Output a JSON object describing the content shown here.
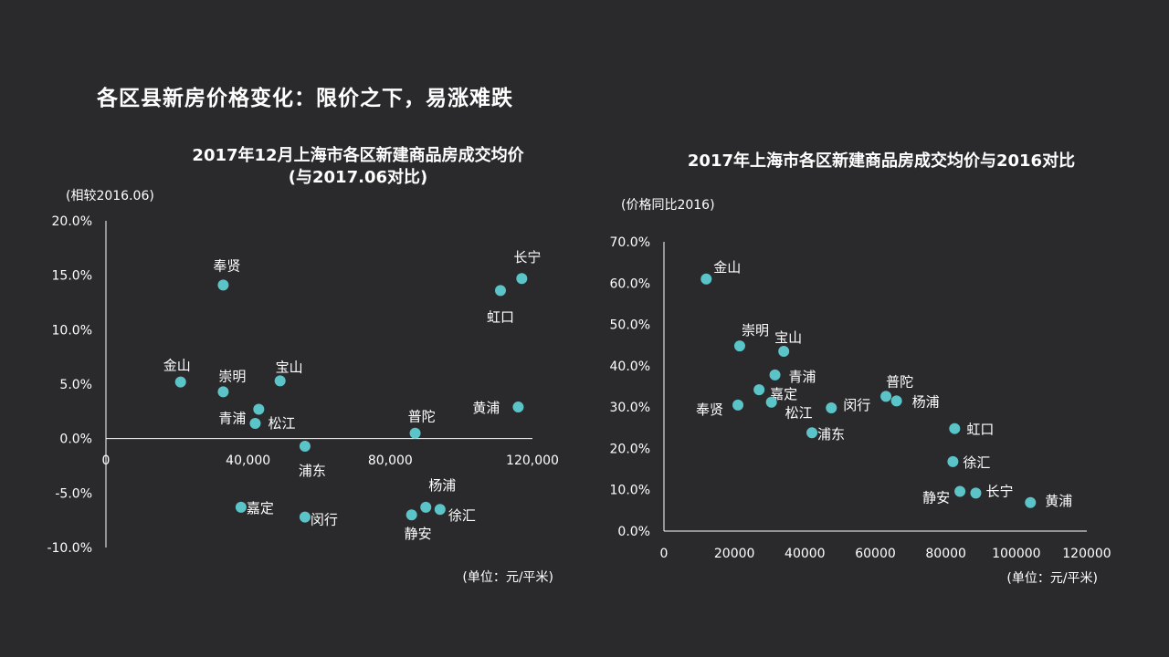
{
  "page": {
    "title": "各区县新房价格变化：限价之下，易涨难跌"
  },
  "colors": {
    "background": "#2a2a2c",
    "point": "#5bc4c8",
    "text": "#ffffff"
  },
  "chart_data": [
    {
      "type": "scatter",
      "title_lines": [
        "2017年12月上海市各区新建商品房成交均价",
        "(与2017.06对比)"
      ],
      "ylabel": "(相较2016.06)",
      "unit_note": "(单位：元/平米)",
      "xlim": [
        0,
        120000
      ],
      "ylim": [
        -10,
        20
      ],
      "xticks": [
        0,
        40000,
        80000,
        120000
      ],
      "xtick_labels": [
        "0",
        "40,000",
        "80,000",
        "120,000"
      ],
      "yticks": [
        20,
        15,
        10,
        5,
        0,
        -5,
        -10
      ],
      "ytick_labels": [
        "20.0%",
        "15.0%",
        "10.0%",
        "5.0%",
        "0.0%",
        "-5.0%",
        "-10.0%"
      ],
      "points": [
        {
          "name": "奉贤",
          "x": 33000,
          "y": 14.1
        },
        {
          "name": "长宁",
          "x": 117000,
          "y": 14.7
        },
        {
          "name": "虹口",
          "x": 111000,
          "y": 13.6
        },
        {
          "name": "金山",
          "x": 21000,
          "y": 5.2
        },
        {
          "name": "崇明",
          "x": 33000,
          "y": 4.3
        },
        {
          "name": "宝山",
          "x": 49000,
          "y": 5.3
        },
        {
          "name": "青浦",
          "x": 43000,
          "y": 2.7
        },
        {
          "name": "松江",
          "x": 42000,
          "y": 1.4
        },
        {
          "name": "黄浦",
          "x": 116000,
          "y": 2.9
        },
        {
          "name": "普陀",
          "x": 87000,
          "y": 0.5
        },
        {
          "name": "浦东",
          "x": 56000,
          "y": -0.7
        },
        {
          "name": "嘉定",
          "x": 38000,
          "y": -6.3
        },
        {
          "name": "闵行",
          "x": 56000,
          "y": -7.2
        },
        {
          "name": "杨浦",
          "x": 90000,
          "y": -6.3
        },
        {
          "name": "徐汇",
          "x": 94000,
          "y": -6.5
        },
        {
          "name": "静安",
          "x": 86000,
          "y": -7.0
        }
      ]
    },
    {
      "type": "scatter",
      "title_lines": [
        "2017年上海市各区新建商品房成交均价与2016对比"
      ],
      "ylabel": "(价格同比2016)",
      "unit_note": "(单位：元/平米)",
      "xlim": [
        0,
        120000
      ],
      "ylim": [
        0,
        70
      ],
      "xticks": [
        0,
        20000,
        40000,
        60000,
        80000,
        100000,
        120000
      ],
      "xtick_labels": [
        "0",
        "20000",
        "40000",
        "60000",
        "80000",
        "100000",
        "120000"
      ],
      "yticks": [
        70,
        60,
        50,
        40,
        30,
        20,
        10,
        0
      ],
      "ytick_labels": [
        "70.0%",
        "60.0%",
        "50.0%",
        "40.0%",
        "30.0%",
        "20.0%",
        "10.0%",
        "0.0%"
      ],
      "points": [
        {
          "name": "金山",
          "x": 12000,
          "y": 61.0
        },
        {
          "name": "崇明",
          "x": 21500,
          "y": 44.8
        },
        {
          "name": "宝山",
          "x": 34000,
          "y": 43.5
        },
        {
          "name": "青浦",
          "x": 31500,
          "y": 37.8
        },
        {
          "name": "嘉定",
          "x": 27000,
          "y": 34.2
        },
        {
          "name": "奉贤",
          "x": 21000,
          "y": 30.5
        },
        {
          "name": "松江",
          "x": 30500,
          "y": 31.2
        },
        {
          "name": "闵行",
          "x": 47500,
          "y": 29.8
        },
        {
          "name": "浦东",
          "x": 42000,
          "y": 23.8
        },
        {
          "name": "普陀",
          "x": 63000,
          "y": 32.6
        },
        {
          "name": "杨浦",
          "x": 66000,
          "y": 31.5
        },
        {
          "name": "虹口",
          "x": 82500,
          "y": 24.8
        },
        {
          "name": "徐汇",
          "x": 82000,
          "y": 16.8
        },
        {
          "name": "静安",
          "x": 84000,
          "y": 9.6
        },
        {
          "name": "长宁",
          "x": 88500,
          "y": 9.2
        },
        {
          "name": "黄浦",
          "x": 104000,
          "y": 6.9
        }
      ]
    }
  ]
}
